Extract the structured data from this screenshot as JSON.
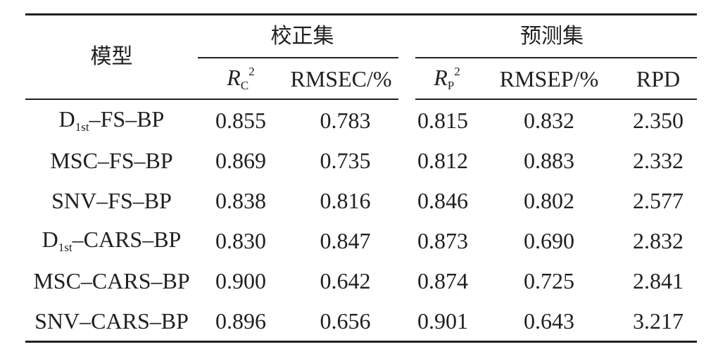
{
  "table": {
    "header": {
      "model": "模型",
      "calibration_group": "校正集",
      "prediction_group": "预测集",
      "rc_symbol": "R",
      "rc_sub": "C",
      "rc_sup": "2",
      "rmsec": "RMSEC/%",
      "rp_symbol": "R",
      "rp_sub": "P",
      "rp_sup": "2",
      "rmsep": "RMSEP/%",
      "rpd": "RPD"
    },
    "rows": [
      {
        "model_prefix": "D",
        "model_sub": "1st",
        "model_suffix": "–FS–BP",
        "rc2": "0.855",
        "rmsec": "0.783",
        "rp2": "0.815",
        "rmsep": "0.832",
        "rpd": "2.350"
      },
      {
        "model_prefix": "MSC–FS–BP",
        "model_sub": "",
        "model_suffix": "",
        "rc2": "0.869",
        "rmsec": "0.735",
        "rp2": "0.812",
        "rmsep": "0.883",
        "rpd": "2.332"
      },
      {
        "model_prefix": "SNV–FS–BP",
        "model_sub": "",
        "model_suffix": "",
        "rc2": "0.838",
        "rmsec": "0.816",
        "rp2": "0.846",
        "rmsep": "0.802",
        "rpd": "2.577"
      },
      {
        "model_prefix": "D",
        "model_sub": "1st",
        "model_suffix": "–CARS–BP",
        "rc2": "0.830",
        "rmsec": "0.847",
        "rp2": "0.873",
        "rmsep": "0.690",
        "rpd": "2.832"
      },
      {
        "model_prefix": "MSC–CARS–BP",
        "model_sub": "",
        "model_suffix": "",
        "rc2": "0.900",
        "rmsec": "0.642",
        "rp2": "0.874",
        "rmsep": "0.725",
        "rpd": "2.841"
      },
      {
        "model_prefix": "SNV–CARS–BP",
        "model_sub": "",
        "model_suffix": "",
        "rc2": "0.896",
        "rmsec": "0.656",
        "rp2": "0.901",
        "rmsep": "0.643",
        "rpd": "3.217"
      }
    ]
  },
  "colors": {
    "text": "#231f20",
    "rule": "#231f20",
    "background": "#ffffff"
  }
}
